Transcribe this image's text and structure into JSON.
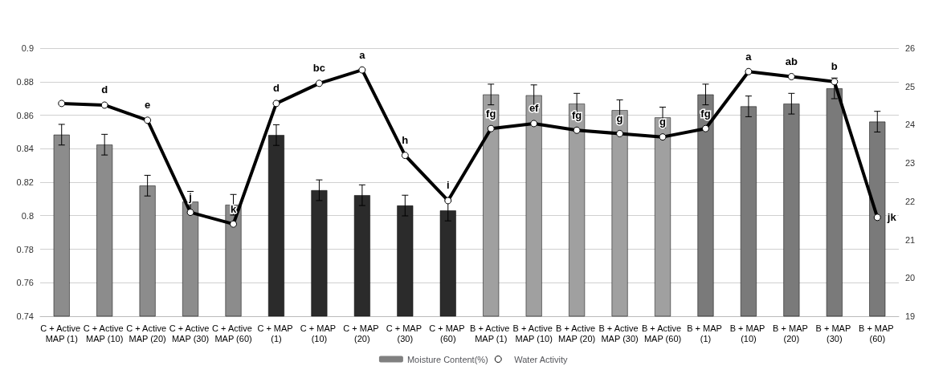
{
  "chart_data": {
    "type": "bar",
    "categories": [
      "C + Active MAP (1)",
      "C + Active MAP (10)",
      "C + Active MAP (20)",
      "C + Active MAP (30)",
      "C + Active MAP (60)",
      "C + MAP (1)",
      "C + MAP (10)",
      "C + MAP (20)",
      "C + MAP (30)",
      "C + MAP (60)",
      "B + Active MAP (1)",
      "B + Active MAP (10)",
      "B + Active MAP (20)",
      "B + Active MAP (30)",
      "B + Active MAP (60)",
      "B + MAP (1)",
      "B + MAP (10)",
      "B + MAP (20)",
      "B + MAP (30)",
      "B + MAP (60)"
    ],
    "series": [
      {
        "name": "Moisture Content(%)",
        "axis": "y2",
        "color": "#808080",
        "colors": [
          "#8c8c8c",
          "#8c8c8c",
          "#8c8c8c",
          "#8c8c8c",
          "#8c8c8c",
          "#2b2b2b",
          "#2b2b2b",
          "#2b2b2b",
          "#2b2b2b",
          "#2b2b2b",
          "#a0a0a0",
          "#a0a0a0",
          "#a0a0a0",
          "#a0a0a0",
          "#a0a0a0",
          "#7a7a7a",
          "#7a7a7a",
          "#7a7a7a",
          "#7a7a7a",
          "#7a7a7a"
        ],
        "values": [
          23.74,
          23.48,
          22.41,
          21.99,
          21.91,
          23.73,
          22.29,
          22.16,
          21.89,
          21.76,
          24.79,
          24.77,
          24.55,
          24.38,
          24.19,
          24.79,
          24.48,
          24.55,
          24.95,
          24.08
        ],
        "errors": [
          0.27,
          0.27,
          0.27,
          0.27,
          0.27,
          0.27,
          0.27,
          0.27,
          0.27,
          0.27,
          0.27,
          0.27,
          0.27,
          0.27,
          0.27,
          0.27,
          0.27,
          0.27,
          0.27,
          0.27
        ]
      },
      {
        "name": "Water Activity",
        "type": "line",
        "color": "#000000",
        "marker": "circle",
        "values": [
          0.867,
          0.866,
          0.857,
          0.802,
          0.795,
          0.867,
          0.879,
          0.887,
          0.836,
          0.809,
          0.852,
          0.855,
          0.851,
          0.849,
          0.847,
          0.852,
          0.886,
          0.883,
          0.88,
          0.799
        ],
        "value_labels": [
          null,
          "d",
          "e",
          "j",
          "k",
          "d",
          "bc",
          "a",
          "h",
          "i",
          "fg",
          "ef",
          "fg",
          "g",
          "g",
          "fg",
          "a",
          "ab",
          "b",
          "jk"
        ]
      }
    ],
    "ylim": [
      0.74,
      0.9
    ],
    "yticks": [
      0.74,
      0.76,
      0.78,
      0.8,
      0.82,
      0.84,
      0.86,
      0.88,
      0.9
    ],
    "y2lim": [
      19,
      26
    ],
    "y2ticks": [
      19,
      20,
      21,
      22,
      23,
      24,
      25,
      26
    ],
    "grid": "y",
    "legend": "bottom"
  }
}
